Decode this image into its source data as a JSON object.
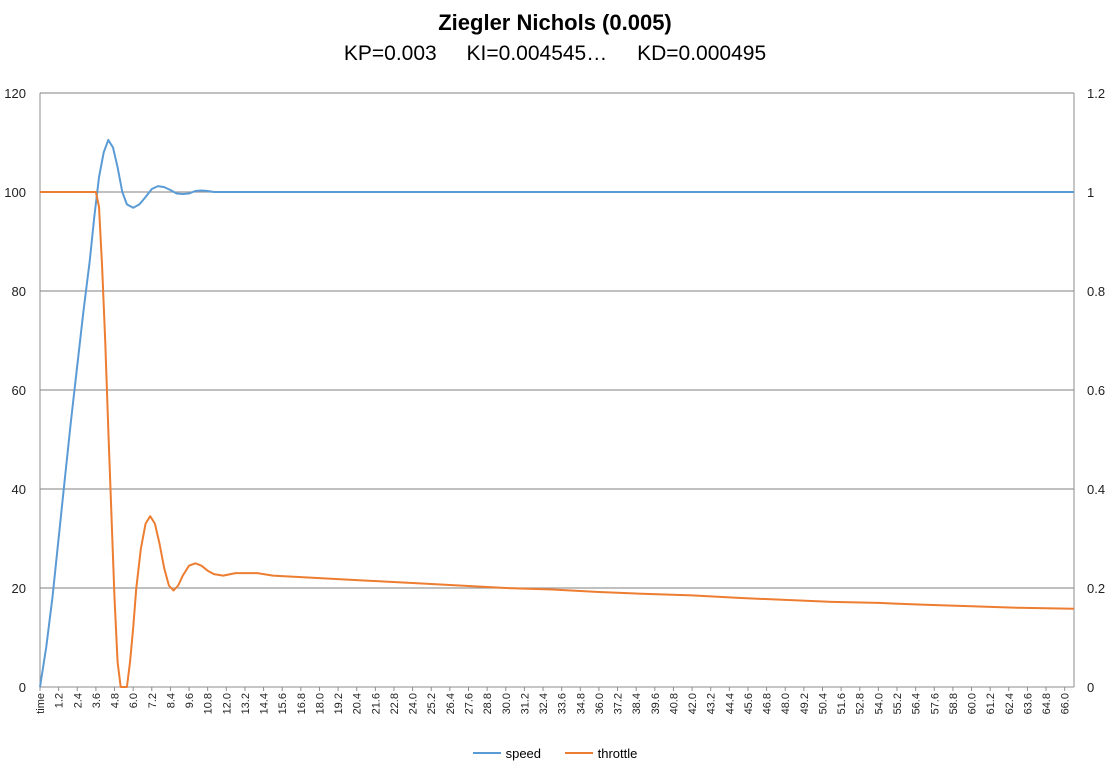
{
  "chart_data": {
    "type": "line",
    "title": "Ziegler Nichols (0.005)",
    "subtitle_parts": [
      "KP=0.003",
      "KI=0.004545…",
      "KD=0.000495"
    ],
    "x_first_label": "time",
    "x_tick_labels": [
      "time",
      "1.2",
      "2.4",
      "3.6",
      "4.8",
      "6.0",
      "7.2",
      "8.4",
      "9.6",
      "10.8",
      "12.0",
      "13.2",
      "14.4",
      "15.6",
      "16.8",
      "18.0",
      "19.2",
      "20.4",
      "21.6",
      "22.8",
      "24.0",
      "25.2",
      "26.4",
      "27.6",
      "28.8",
      "30.0",
      "31.2",
      "32.4",
      "33.6",
      "34.8",
      "36.0",
      "37.2",
      "38.4",
      "39.6",
      "40.8",
      "42.0",
      "43.2",
      "44.4",
      "45.6",
      "46.8",
      "48.0",
      "49.2",
      "50.4",
      "51.6",
      "52.8",
      "54.0",
      "55.2",
      "56.4",
      "57.6",
      "58.8",
      "60.0",
      "61.2",
      "62.4",
      "63.6",
      "64.8",
      "66.0"
    ],
    "xlim": [
      0,
      66.6
    ],
    "y_left_lim": [
      0,
      120
    ],
    "y_left_ticks": [
      "0",
      "20",
      "40",
      "60",
      "80",
      "100",
      "120"
    ],
    "y_right_lim": [
      0,
      1.2
    ],
    "y_right_ticks": [
      "0",
      "0.2",
      "0.4",
      "0.6",
      "0.8",
      "1",
      "1.2"
    ],
    "grid": true,
    "legend_position": "bottom",
    "series": [
      {
        "name": "speed",
        "axis": "left",
        "color": "#5b9bd5",
        "points": [
          [
            0,
            0
          ],
          [
            0.4,
            8
          ],
          [
            0.8,
            18
          ],
          [
            1.2,
            30
          ],
          [
            1.6,
            42
          ],
          [
            2.0,
            54
          ],
          [
            2.4,
            65
          ],
          [
            2.8,
            76
          ],
          [
            3.2,
            86
          ],
          [
            3.5,
            95
          ],
          [
            3.8,
            103
          ],
          [
            4.1,
            108
          ],
          [
            4.4,
            110.5
          ],
          [
            4.7,
            109
          ],
          [
            5.0,
            105
          ],
          [
            5.3,
            100
          ],
          [
            5.6,
            97.5
          ],
          [
            6.0,
            96.8
          ],
          [
            6.4,
            97.5
          ],
          [
            6.8,
            99
          ],
          [
            7.2,
            100.6
          ],
          [
            7.6,
            101.2
          ],
          [
            8.0,
            101
          ],
          [
            8.4,
            100.4
          ],
          [
            8.8,
            99.7
          ],
          [
            9.2,
            99.6
          ],
          [
            9.6,
            99.7
          ],
          [
            10.0,
            100.2
          ],
          [
            10.4,
            100.3
          ],
          [
            10.8,
            100.2
          ],
          [
            11.2,
            100
          ],
          [
            12.0,
            100
          ],
          [
            20,
            100
          ],
          [
            40,
            100
          ],
          [
            66.6,
            100
          ]
        ]
      },
      {
        "name": "throttle",
        "axis": "right",
        "color": "#ed7d31",
        "points": [
          [
            0,
            1
          ],
          [
            3.6,
            1
          ],
          [
            3.8,
            0.97
          ],
          [
            4.0,
            0.85
          ],
          [
            4.2,
            0.7
          ],
          [
            4.4,
            0.52
          ],
          [
            4.6,
            0.35
          ],
          [
            4.8,
            0.18
          ],
          [
            5.0,
            0.05
          ],
          [
            5.2,
            0
          ],
          [
            5.6,
            0
          ],
          [
            5.8,
            0.05
          ],
          [
            6.0,
            0.12
          ],
          [
            6.2,
            0.2
          ],
          [
            6.5,
            0.28
          ],
          [
            6.8,
            0.33
          ],
          [
            7.1,
            0.345
          ],
          [
            7.4,
            0.33
          ],
          [
            7.7,
            0.29
          ],
          [
            8.0,
            0.24
          ],
          [
            8.3,
            0.205
          ],
          [
            8.6,
            0.195
          ],
          [
            8.9,
            0.205
          ],
          [
            9.2,
            0.225
          ],
          [
            9.6,
            0.245
          ],
          [
            10.0,
            0.25
          ],
          [
            10.4,
            0.245
          ],
          [
            10.8,
            0.235
          ],
          [
            11.2,
            0.228
          ],
          [
            11.8,
            0.225
          ],
          [
            12.6,
            0.23
          ],
          [
            14,
            0.23
          ],
          [
            15,
            0.225
          ],
          [
            18,
            0.22
          ],
          [
            21,
            0.215
          ],
          [
            24,
            0.21
          ],
          [
            27,
            0.205
          ],
          [
            30,
            0.2
          ],
          [
            33,
            0.197
          ],
          [
            36,
            0.192
          ],
          [
            39,
            0.188
          ],
          [
            42,
            0.185
          ],
          [
            45,
            0.18
          ],
          [
            48,
            0.176
          ],
          [
            51,
            0.172
          ],
          [
            54,
            0.17
          ],
          [
            57,
            0.166
          ],
          [
            60,
            0.163
          ],
          [
            63,
            0.16
          ],
          [
            66.6,
            0.158
          ]
        ]
      }
    ]
  }
}
